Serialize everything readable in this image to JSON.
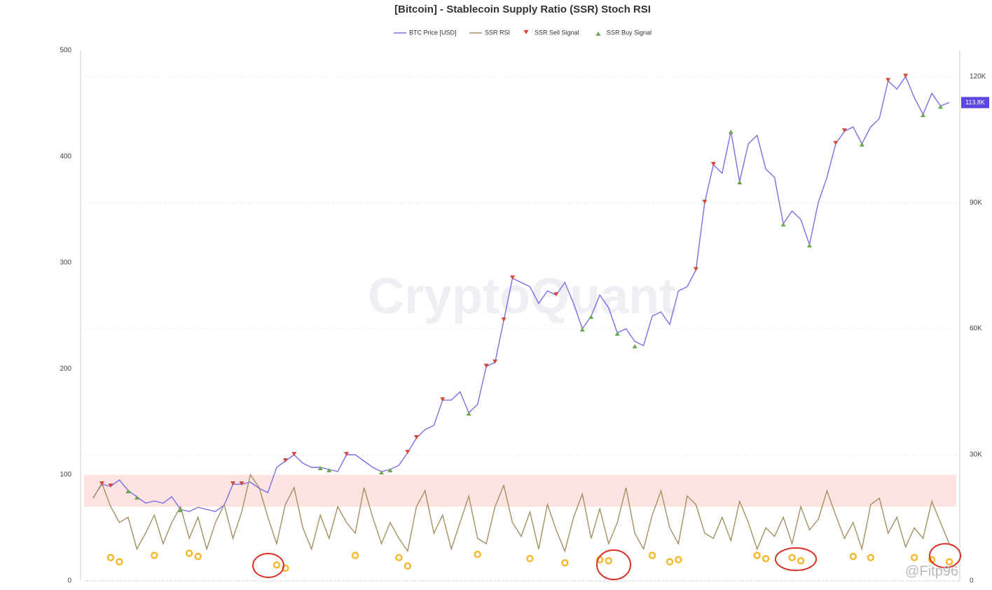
{
  "chart_data": {
    "type": "line",
    "title": "[Bitcoin] - Stablecoin Supply Ratio (SSR) Stoch RSI",
    "watermark": "CryptoQuant",
    "credit": "@Fitp96",
    "ylim": [
      0,
      500
    ],
    "yticks": [
      0,
      100,
      200,
      300,
      400,
      500
    ],
    "y2lim": [
      0,
      126200
    ],
    "y2ticks": [
      0,
      {
        "value": 30000,
        "label": "30K"
      },
      {
        "value": 60000,
        "label": "60K"
      },
      {
        "value": 90000,
        "label": "90K"
      },
      {
        "value": 120000,
        "label": "120K"
      }
    ],
    "band": [
      70,
      100
    ],
    "band_color": "#fde3e1",
    "grid": true,
    "current_price": {
      "value": 113800,
      "label": "113.8K"
    },
    "series": [
      {
        "name": "BTC Price [USD]",
        "color": "#7b6ee6",
        "axis": "y2",
        "marker": "line",
        "values": [
          19800,
          23000,
          22500,
          24000,
          21500,
          20000,
          18500,
          19000,
          18500,
          20000,
          17000,
          16500,
          17500,
          17000,
          16500,
          18000,
          23000,
          23000,
          23500,
          22000,
          21000,
          27000,
          28500,
          30000,
          28000,
          27000,
          27000,
          26500,
          26000,
          30000,
          30000,
          28500,
          27000,
          26000,
          26500,
          27500,
          30500,
          34000,
          36000,
          37000,
          43000,
          43000,
          45000,
          40000,
          42000,
          51000,
          52000,
          62000,
          72000,
          71000,
          70000,
          66000,
          69000,
          68000,
          71000,
          66000,
          60000,
          63000,
          68000,
          65000,
          59000,
          60000,
          57000,
          56000,
          63000,
          64000,
          61000,
          69000,
          70000,
          74000,
          90000,
          99000,
          97000,
          107000,
          95000,
          104000,
          106000,
          98000,
          96000,
          85000,
          88000,
          86000,
          80000,
          90000,
          96000,
          104000,
          107000,
          108000,
          104000,
          108000,
          110000,
          119000,
          117000,
          120000,
          115000,
          111000,
          116000,
          113000,
          113800
        ]
      },
      {
        "name": "SSR RSI",
        "color": "#a58f62",
        "marker": "line",
        "values": [
          78,
          92,
          70,
          55,
          60,
          30,
          45,
          62,
          35,
          55,
          70,
          40,
          60,
          30,
          55,
          72,
          40,
          65,
          100,
          88,
          60,
          35,
          72,
          88,
          50,
          30,
          62,
          40,
          70,
          55,
          45,
          88,
          60,
          35,
          55,
          40,
          28,
          70,
          85,
          45,
          62,
          30,
          55,
          80,
          40,
          35,
          70,
          90,
          55,
          42,
          65,
          30,
          72,
          48,
          28,
          60,
          82,
          40,
          68,
          35,
          55,
          88,
          45,
          30,
          62,
          85,
          50,
          35,
          80,
          72,
          45,
          40,
          60,
          38,
          75,
          55,
          30,
          50,
          42,
          60,
          35,
          70,
          48,
          58,
          85,
          62,
          40,
          55,
          30,
          72,
          78,
          45,
          60,
          32,
          50,
          40,
          75,
          55,
          35
        ]
      },
      {
        "name": "SSR Sell Signal",
        "color": "#d9473a",
        "axis": "y2",
        "marker": "triangle-down",
        "values": [
          null,
          23000,
          22500,
          null,
          null,
          null,
          null,
          null,
          null,
          null,
          null,
          null,
          null,
          null,
          null,
          null,
          23000,
          23000,
          null,
          null,
          null,
          null,
          28500,
          30000,
          null,
          null,
          null,
          null,
          null,
          30000,
          null,
          null,
          null,
          null,
          null,
          null,
          30500,
          34000,
          null,
          null,
          43000,
          null,
          null,
          null,
          null,
          51000,
          52000,
          62000,
          72000,
          null,
          null,
          null,
          null,
          68000,
          null,
          null,
          null,
          null,
          null,
          null,
          null,
          null,
          null,
          null,
          null,
          null,
          null,
          null,
          null,
          74000,
          90000,
          99000,
          null,
          null,
          null,
          null,
          null,
          null,
          null,
          null,
          null,
          null,
          null,
          null,
          null,
          104000,
          107000,
          null,
          null,
          null,
          null,
          119000,
          null,
          120000,
          null,
          null,
          null,
          null,
          null
        ]
      },
      {
        "name": "SSR Buy Signal",
        "color": "#6aa84f",
        "axis": "y2",
        "marker": "triangle-up",
        "values": [
          null,
          null,
          null,
          null,
          21500,
          20000,
          null,
          null,
          null,
          null,
          17000,
          null,
          null,
          null,
          null,
          null,
          null,
          null,
          null,
          null,
          null,
          null,
          null,
          null,
          null,
          null,
          27000,
          26500,
          null,
          null,
          null,
          null,
          null,
          26000,
          26500,
          null,
          null,
          null,
          null,
          null,
          null,
          null,
          null,
          40000,
          null,
          null,
          null,
          null,
          null,
          null,
          null,
          null,
          null,
          null,
          null,
          null,
          60000,
          63000,
          null,
          null,
          59000,
          null,
          56000,
          null,
          null,
          null,
          null,
          null,
          null,
          null,
          null,
          null,
          null,
          107000,
          95000,
          null,
          null,
          null,
          null,
          85000,
          null,
          null,
          80000,
          null,
          null,
          null,
          null,
          null,
          104000,
          null,
          null,
          null,
          null,
          null,
          null,
          111000,
          null,
          113000,
          null
        ]
      }
    ],
    "highlights": {
      "color": "#f5b82e",
      "x": [
        2,
        3,
        7,
        11,
        12,
        21,
        22,
        30,
        35,
        36,
        44,
        50,
        54,
        58,
        59,
        64,
        66,
        67,
        76,
        77,
        80,
        81,
        87,
        89,
        94,
        96,
        98
      ],
      "values": [
        22,
        18,
        24,
        26,
        23,
        15,
        12,
        24,
        22,
        14,
        25,
        21,
        17,
        20,
        19,
        24,
        18,
        20,
        24,
        21,
        22,
        19,
        23,
        22,
        22,
        20,
        18
      ]
    }
  }
}
